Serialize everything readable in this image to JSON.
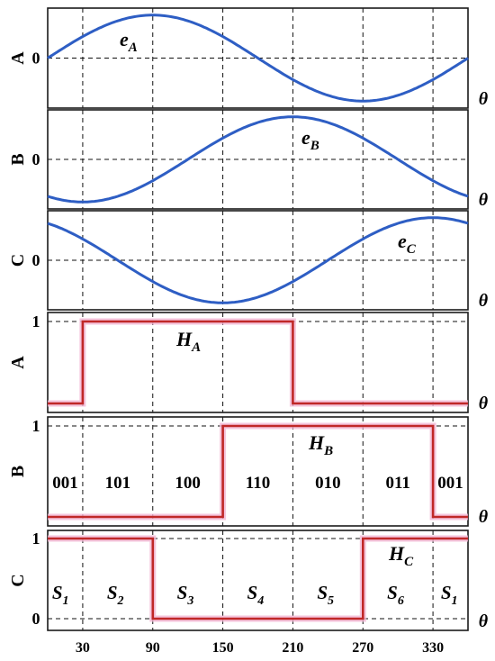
{
  "chart_data": [
    {
      "type": "line",
      "panel_label": "A",
      "ytick_label": "0",
      "xlabel": "θ",
      "xlim": [
        0,
        360
      ],
      "series": [
        {
          "label_main": "e",
          "label_sub": "A",
          "function": "sin(θ)",
          "phase_deg": 0,
          "color": "#2e5ec4"
        }
      ]
    },
    {
      "type": "line",
      "panel_label": "B",
      "ytick_label": "0",
      "xlabel": "θ",
      "xlim": [
        0,
        360
      ],
      "series": [
        {
          "label_main": "e",
          "label_sub": "B",
          "function": "sin(θ-120)",
          "phase_deg": -120,
          "color": "#2e5ec4"
        }
      ]
    },
    {
      "type": "line",
      "panel_label": "C",
      "ytick_label": "0",
      "xlabel": "θ",
      "xlim": [
        0,
        360
      ],
      "series": [
        {
          "label_main": "e",
          "label_sub": "C",
          "function": "sin(θ+120)",
          "phase_deg": 120,
          "color": "#2e5ec4"
        }
      ]
    },
    {
      "type": "line",
      "panel_label": "A",
      "ytick_label": "1",
      "xlabel": "θ",
      "xlim": [
        0,
        360
      ],
      "series": [
        {
          "label_main": "H",
          "label_sub": "A",
          "color": "#c02828",
          "points": [
            [
              0,
              0
            ],
            [
              30,
              0
            ],
            [
              30,
              1
            ],
            [
              210,
              1
            ],
            [
              210,
              0
            ],
            [
              360,
              0
            ]
          ]
        }
      ]
    },
    {
      "type": "line",
      "panel_label": "B",
      "ytick_label": "1",
      "xlabel": "θ",
      "xlim": [
        0,
        360
      ],
      "series": [
        {
          "label_main": "H",
          "label_sub": "B",
          "color": "#c02828",
          "points": [
            [
              0,
              0
            ],
            [
              150,
              0
            ],
            [
              150,
              1
            ],
            [
              330,
              1
            ],
            [
              330,
              0
            ],
            [
              360,
              0
            ]
          ]
        }
      ],
      "annotations": [
        "001",
        "101",
        "100",
        "110",
        "010",
        "011",
        "001"
      ]
    },
    {
      "type": "line",
      "panel_label": "C",
      "ytick_labels": [
        "1",
        "0"
      ],
      "xlabel": "θ",
      "xlim": [
        0,
        360
      ],
      "xticks": [
        30,
        90,
        150,
        210,
        270,
        330
      ],
      "xtick_labels": [
        "30",
        "90",
        "150",
        "210",
        "270",
        "330"
      ],
      "series": [
        {
          "label_main": "H",
          "label_sub": "C",
          "color": "#c02828",
          "points": [
            [
              0,
              1
            ],
            [
              90,
              1
            ],
            [
              90,
              0
            ],
            [
              270,
              0
            ],
            [
              270,
              1
            ],
            [
              360,
              1
            ]
          ]
        }
      ],
      "sectors": [
        {
          "main": "S",
          "sub": "1"
        },
        {
          "main": "S",
          "sub": "2"
        },
        {
          "main": "S",
          "sub": "3"
        },
        {
          "main": "S",
          "sub": "4"
        },
        {
          "main": "S",
          "sub": "5"
        },
        {
          "main": "S",
          "sub": "6"
        },
        {
          "main": "S",
          "sub": "1"
        }
      ]
    }
  ]
}
